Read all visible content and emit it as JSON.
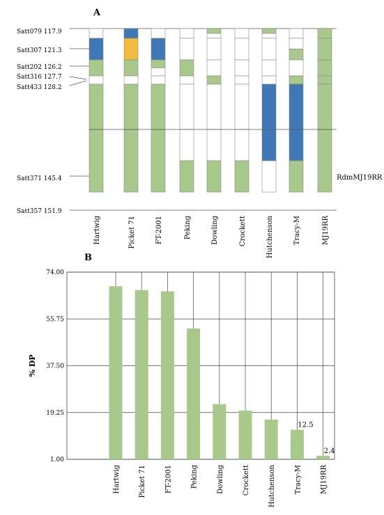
{
  "colors": {
    "green": "#a9c88b",
    "blue": "#3f78b4",
    "orange": "#f0bb40",
    "white": "#ffffff",
    "outline": "#888888",
    "line": "#555555"
  },
  "chart_data": [
    {
      "type": "diagram",
      "panel_label": "A",
      "lines": [
        "Hartwig",
        "Picket 71",
        "FT-2001",
        "Peking",
        "Dowling",
        "Crockett",
        "Hutchenson",
        "Tracy-M",
        "MJ19RR"
      ],
      "markers": [
        {
          "name": "Satt079",
          "pos": 117.9,
          "label": "Satt079 117.9"
        },
        {
          "name": "Satt307",
          "pos": 121.3,
          "label": "Satt307 121.3"
        },
        {
          "name": "Satt202",
          "pos": 126.2,
          "label": "Satt202 126.2"
        },
        {
          "name": "Satt316",
          "pos": 127.7,
          "label": "Satt316 127.7"
        },
        {
          "name": "Satt433",
          "pos": 128.2,
          "label": "Satt433 128.2"
        },
        {
          "name": "Satt371",
          "pos": 145.4,
          "label": "Satt371 145.4"
        },
        {
          "name": "Satt357",
          "pos": 151.9,
          "label": "Satt357 151.9"
        }
      ],
      "qtl_label": "RdmMJ19RR",
      "segments": [
        [
          [
            "white",
            "white"
          ],
          [
            "blue",
            "blue"
          ],
          [
            "green",
            "green"
          ],
          [
            "white",
            "white"
          ],
          [
            "green",
            "green"
          ],
          [
            "green",
            "green"
          ]
        ],
        [
          [
            "blue",
            "blue"
          ],
          [
            "orange",
            "orange"
          ],
          [
            "green",
            "green"
          ],
          [
            "white",
            "white"
          ],
          [
            "green",
            "green"
          ],
          [
            "green",
            "green"
          ]
        ],
        [
          [
            "white",
            "white"
          ],
          [
            "blue",
            "blue"
          ],
          [
            "green",
            "white"
          ],
          [
            "white",
            "white"
          ],
          [
            "green",
            "green"
          ],
          [
            "green",
            "green"
          ]
        ],
        [
          [
            "white",
            "white"
          ],
          [
            "white",
            "white"
          ],
          [
            "green",
            "green"
          ],
          [
            "white",
            "white"
          ],
          [
            "white",
            "white"
          ],
          [
            "white",
            "green"
          ]
        ],
        [
          [
            "green",
            "white"
          ],
          [
            "white",
            "white"
          ],
          [
            "white",
            "white"
          ],
          [
            "green",
            "green"
          ],
          [
            "white",
            "white"
          ],
          [
            "white",
            "green"
          ]
        ],
        [
          [
            "white",
            "white"
          ],
          [
            "white",
            "white"
          ],
          [
            "white",
            "white"
          ],
          [
            "white",
            "white"
          ],
          [
            "white",
            "white"
          ],
          [
            "white",
            "green"
          ]
        ],
        [
          [
            "green",
            "white"
          ],
          [
            "white",
            "white"
          ],
          [
            "white",
            "white"
          ],
          [
            "white",
            "white"
          ],
          [
            "blue",
            "blue"
          ],
          [
            "blue",
            "white"
          ]
        ],
        [
          [
            "white",
            "white"
          ],
          [
            "white",
            "green"
          ],
          [
            "white",
            "white"
          ],
          [
            "green",
            "green"
          ],
          [
            "blue",
            "blue"
          ],
          [
            "blue",
            "green"
          ]
        ],
        [
          [
            "green",
            "green"
          ],
          [
            "green",
            "green"
          ],
          [
            "green",
            "green"
          ],
          [
            "green",
            "green"
          ],
          [
            "green",
            "green"
          ],
          [
            "green",
            "green"
          ]
        ]
      ]
    },
    {
      "type": "bar",
      "panel_label": "B",
      "categories": [
        "Hartwig",
        "Picket 71",
        "FT-2001",
        "Peking",
        "Dowling",
        "Crockett",
        "Hutchenson",
        "Tracy-M",
        "MJ19RR"
      ],
      "values": [
        68.5,
        67.0,
        66.5,
        52.0,
        22.5,
        20.0,
        16.5,
        12.5,
        2.4
      ],
      "data_labels": [
        "",
        "",
        "",
        "",
        "",
        "",
        "",
        "12.5",
        "2.4"
      ],
      "ylabel": "% DP",
      "yticks": [
        "1.00",
        "19.25",
        "37.50",
        "55.75",
        "74.00"
      ],
      "ylim": [
        1.0,
        74.0
      ],
      "grid": true
    }
  ]
}
